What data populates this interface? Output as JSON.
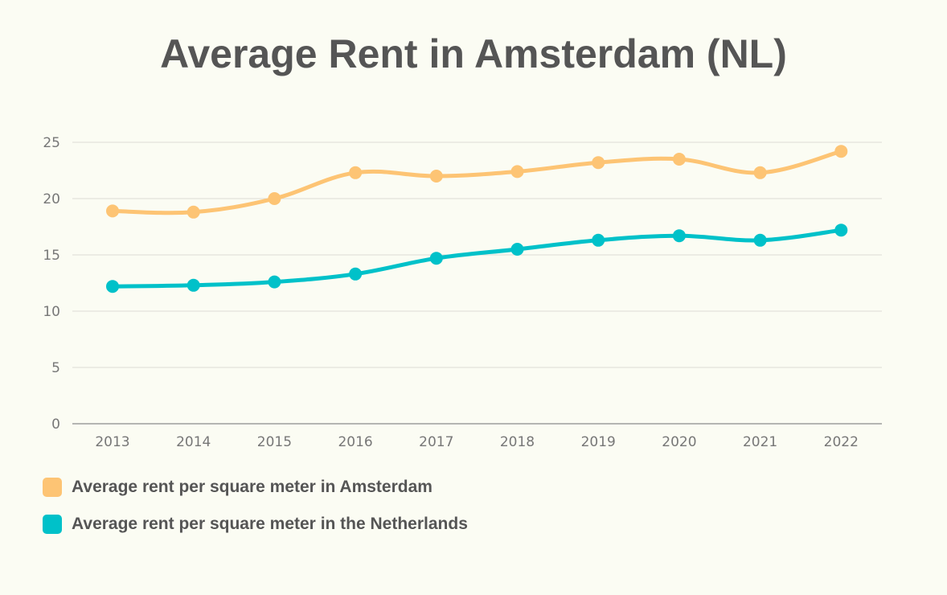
{
  "chart_data": {
    "type": "line",
    "title": "Average Rent in Amsterdam (NL)",
    "xlabel": "",
    "ylabel": "",
    "categories": [
      "2013",
      "2014",
      "2015",
      "2016",
      "2017",
      "2018",
      "2019",
      "2020",
      "2021",
      "2022"
    ],
    "ylim": [
      0,
      25
    ],
    "yticks": [
      0,
      5,
      10,
      15,
      20,
      25
    ],
    "grid": true,
    "legend_position": "bottom-left",
    "series": [
      {
        "name": "Average rent per square meter in Amsterdam",
        "color": "#fdc474",
        "values": [
          18.9,
          18.8,
          20.0,
          22.3,
          22.0,
          22.4,
          23.2,
          23.5,
          22.3,
          24.2
        ]
      },
      {
        "name": "Average rent per square meter in the Netherlands",
        "color": "#00c1c9",
        "values": [
          12.2,
          12.3,
          12.6,
          13.3,
          14.7,
          15.5,
          16.3,
          16.7,
          16.3,
          17.2
        ]
      }
    ]
  }
}
